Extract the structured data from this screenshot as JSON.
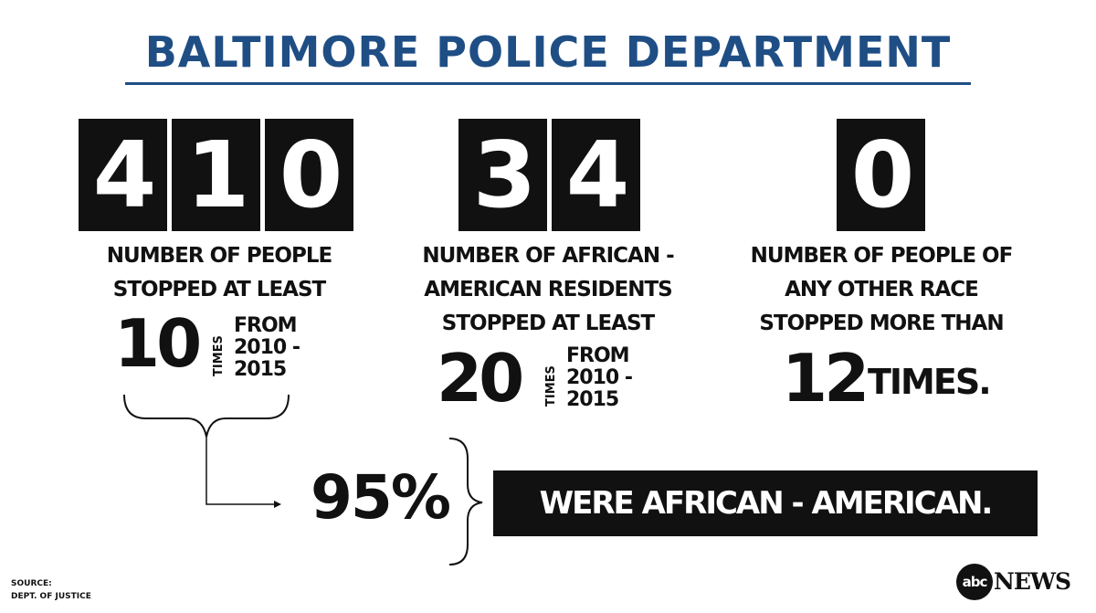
{
  "title": "BALTIMORE POLICE DEPARTMENT",
  "stat1": {
    "digits": [
      "4",
      "1",
      "0"
    ],
    "caption_line1": "NUMBER OF PEOPLE",
    "caption_line2": "STOPPED AT LEAST",
    "times_number": "10",
    "times_label": "TIMES",
    "from_line1": "FROM",
    "from_line2": "2010 -",
    "from_line3": "2015"
  },
  "stat2": {
    "digits": [
      "3",
      "4"
    ],
    "caption_line1": "NUMBER OF AFRICAN -",
    "caption_line2": "AMERICAN RESIDENTS",
    "caption_line3": "STOPPED AT LEAST",
    "times_number": "20",
    "times_label": "TIMES",
    "from_line1": "FROM",
    "from_line2": "2010 -",
    "from_line3": "2015"
  },
  "stat3": {
    "digits": [
      "0"
    ],
    "caption_line1": "NUMBER OF PEOPLE OF",
    "caption_line2": "ANY OTHER RACE",
    "caption_line3": "STOPPED MORE THAN",
    "times_number": "12",
    "times_label": "TIMES."
  },
  "summary": {
    "percent": "95%",
    "statement": "WERE AFRICAN - AMERICAN."
  },
  "source": {
    "label": "SOURCE:",
    "value": "DEPT. OF JUSTICE"
  },
  "logo": {
    "abc": "abc",
    "news": "NEWS"
  },
  "colors": {
    "title": "#1f4e85",
    "dark": "#111111"
  }
}
